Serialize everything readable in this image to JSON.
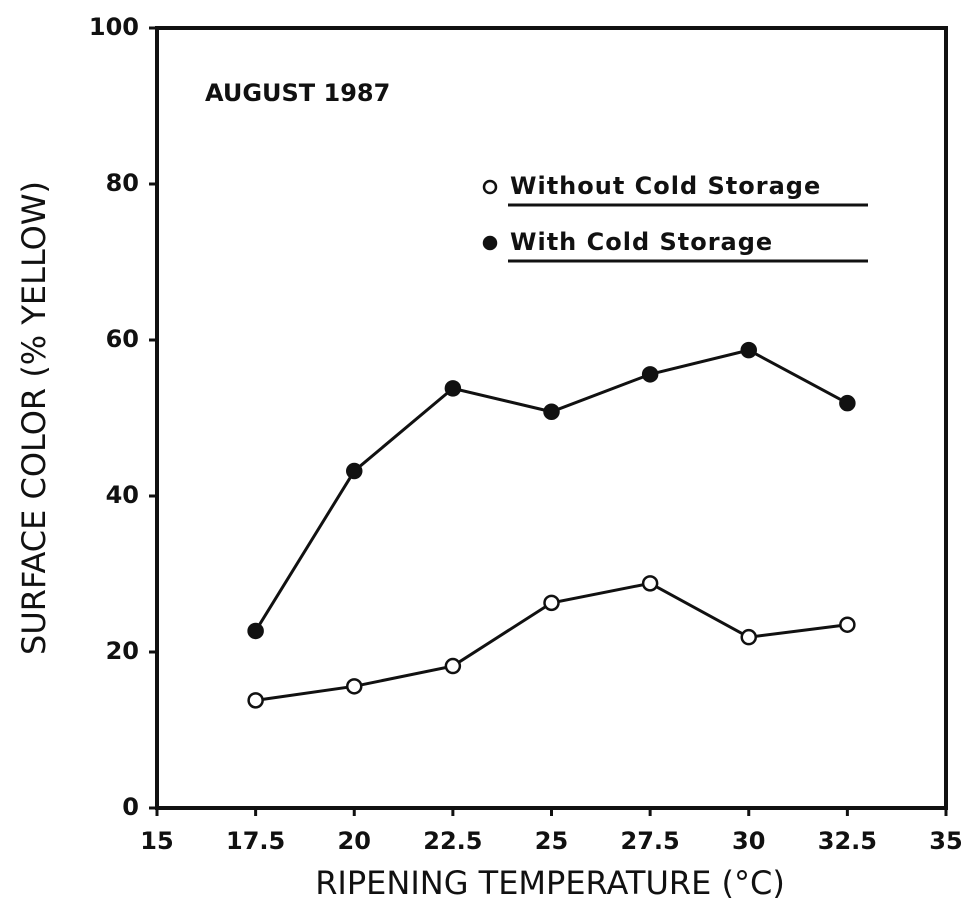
{
  "chart_data": {
    "type": "line",
    "annotation": "AUGUST 1987",
    "xlabel": "RIPENING TEMPERATURE (°C)",
    "ylabel": "SURFACE COLOR (% YELLOW)",
    "x": [
      17.5,
      20,
      22.5,
      25,
      27.5,
      30,
      32.5
    ],
    "series": [
      {
        "name": "Without Cold Storage",
        "color": "#111111",
        "marker": "open",
        "values": [
          13.8,
          15.6,
          18.2,
          26.3,
          28.8,
          21.9,
          23.5
        ]
      },
      {
        "name": "With Cold Storage",
        "color": "#111111",
        "marker": "filled",
        "values": [
          22.7,
          43.2,
          53.8,
          50.8,
          55.6,
          58.7,
          51.9
        ]
      }
    ],
    "xlim": [
      15,
      35
    ],
    "xticks": [
      15,
      17.5,
      20,
      22.5,
      25,
      27.5,
      30,
      32.5,
      35
    ],
    "ylim": [
      0,
      100
    ],
    "yticks": [
      0,
      20,
      40,
      60,
      80,
      100
    ],
    "grid": false,
    "legend": "upper right"
  }
}
